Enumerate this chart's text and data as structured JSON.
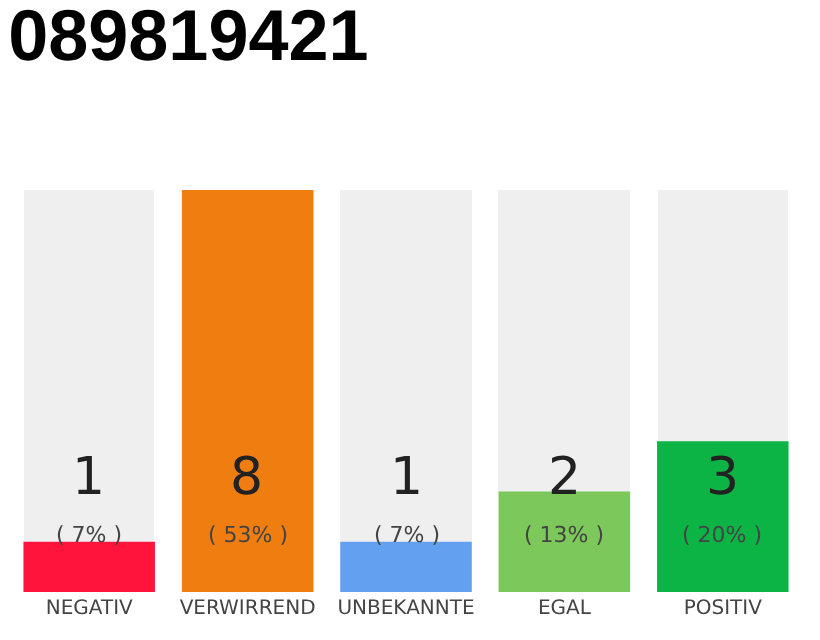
{
  "chart_data": {
    "type": "bar",
    "title": "089819421",
    "categories": [
      "NEGATIV",
      "VERWIRREND",
      "UNBEKANNTE",
      "EGAL",
      "POSITIV"
    ],
    "values": [
      1,
      8,
      1,
      2,
      3
    ],
    "colors": [
      "#ff143c",
      "#f07d0f",
      "#64a0f0",
      "#7dc85a",
      "#0cb446"
    ],
    "ylim": [
      0,
      8
    ],
    "tick_labels": "x",
    "grid": false,
    "legend": false,
    "data_labels": true,
    "annotations": [
      "( 7% )",
      "( 53% )",
      "( 7% )",
      "( 13% )",
      "( 20% )"
    ]
  }
}
